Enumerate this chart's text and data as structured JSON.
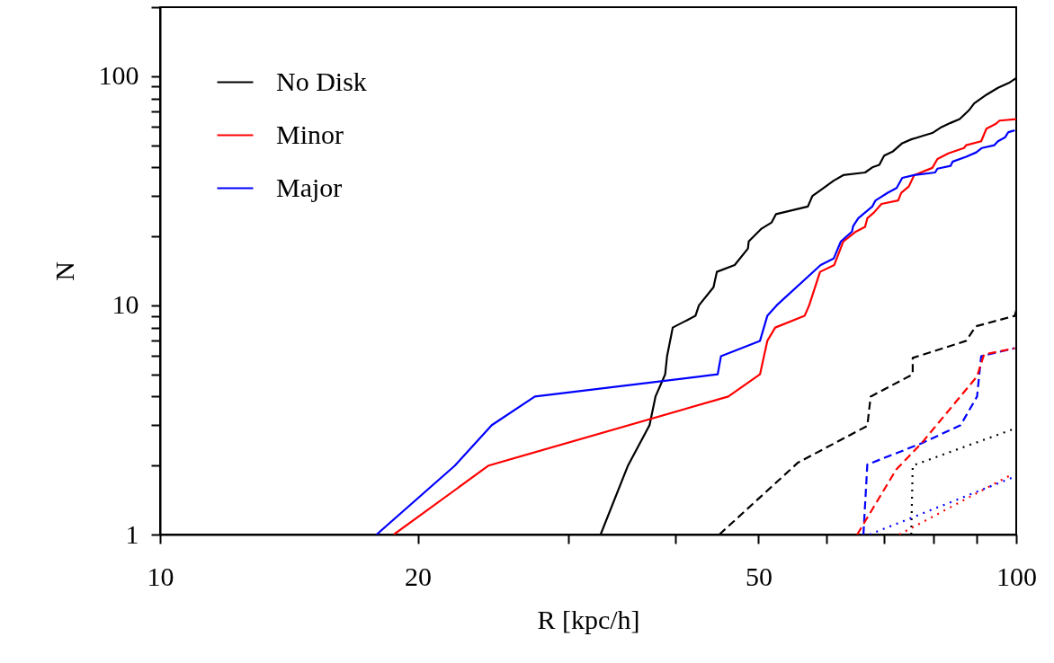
{
  "chart_data": {
    "type": "line",
    "xlabel": "R [kpc/h]",
    "ylabel": "N",
    "log": "xy",
    "xlim": [
      10,
      100
    ],
    "ylim": [
      1,
      200
    ],
    "xticks": [
      10,
      20,
      {
        "value": 30,
        "label": null
      },
      {
        "value": 40,
        "label": null
      },
      50,
      {
        "value": 60,
        "label": null
      },
      {
        "value": 70,
        "label": null
      },
      {
        "value": 80,
        "label": null
      },
      {
        "value": 90,
        "label": null
      },
      100
    ],
    "yticks": [
      1,
      {
        "value": 2,
        "label": null
      },
      {
        "value": 3,
        "label": null
      },
      {
        "value": 4,
        "label": null
      },
      {
        "value": 5,
        "label": null
      },
      {
        "value": 6,
        "label": null
      },
      {
        "value": 7,
        "label": null
      },
      {
        "value": 8,
        "label": null
      },
      {
        "value": 9,
        "label": null
      },
      10,
      {
        "value": 20,
        "label": null
      },
      {
        "value": 30,
        "label": null
      },
      {
        "value": 40,
        "label": null
      },
      {
        "value": 50,
        "label": null
      },
      {
        "value": 60,
        "label": null
      },
      {
        "value": 70,
        "label": null
      },
      {
        "value": 80,
        "label": null
      },
      {
        "value": 90,
        "label": null
      },
      100,
      {
        "value": 200,
        "label": null
      }
    ],
    "grid": false,
    "legend": "top left",
    "marker": "none",
    "series": [
      {
        "name": "No Disk",
        "color": "#000000",
        "line_style": "solid",
        "x": [
          32.7,
          35.2,
          37.3,
          37.9,
          38.9,
          39.1,
          39.7,
          42.2,
          42.6,
          44.3,
          44.7,
          46.9,
          48.6,
          48.7,
          50.4,
          51.8,
          52.4,
          57.1,
          57.8,
          59.0,
          61.2,
          62.8,
          66.6,
          67.9,
          69.2,
          70.1,
          71.8,
          73.6,
          75.4,
          77.9,
          79.8,
          81.8,
          83.8,
          85.9,
          88.0,
          89.3,
          92.3,
          95.2,
          98.3,
          100
        ],
        "values": [
          1,
          2,
          3,
          4,
          5,
          6,
          8,
          9,
          10,
          12,
          14,
          15,
          17.7,
          19,
          21.6,
          23,
          25,
          27,
          30,
          31.7,
          35,
          37,
          38,
          40,
          41,
          45,
          47,
          51,
          53,
          55,
          56.5,
          60,
          62.5,
          65,
          70.8,
          76,
          83,
          89,
          94,
          98
        ]
      },
      {
        "name": "Minor",
        "color": "#ff0000",
        "line_style": "solid",
        "x": [
          18.75,
          24.2,
          46.1,
          50.2,
          51.2,
          52.3,
          56.6,
          57.3,
          59.0,
          61.3,
          62.8,
          65.0,
          66.6,
          67.0,
          68.2,
          69.6,
          72.8,
          73.4,
          74.9,
          76.0,
          79.8,
          80.9,
          83.3,
          86.9,
          87.4,
          91.0,
          92.3,
          94.7,
          95.6,
          100
        ],
        "values": [
          1,
          2,
          4,
          5,
          7,
          8,
          9,
          10,
          14,
          15,
          19,
          21,
          22,
          24,
          25.4,
          27.7,
          28.7,
          31,
          33,
          37,
          39.8,
          43.5,
          46,
          48.6,
          50,
          52,
          59,
          62,
          64,
          64.9
        ]
      },
      {
        "name": "Major",
        "color": "#0000ff",
        "line_style": "solid",
        "x": [
          17.9,
          22.1,
          24.4,
          27.4,
          44.8,
          45.2,
          50.2,
          51.2,
          52.5,
          59.1,
          61.2,
          62.4,
          64.3,
          64.5,
          65.4,
          67.9,
          68.5,
          70.8,
          72.5,
          73.6,
          76.0,
          80.4,
          80.9,
          83.8,
          84.3,
          87.4,
          89.8,
          91.2,
          94.3,
          95.2,
          97.0,
          97.9,
          99.6
        ],
        "values": [
          1,
          2,
          3,
          4,
          5,
          6,
          7,
          9,
          10,
          15,
          16,
          19,
          21,
          22.2,
          24,
          27,
          28.7,
          31,
          32.5,
          36,
          37,
          38,
          39.5,
          40.6,
          42.4,
          44.5,
          46.5,
          48.6,
          50,
          52,
          54,
          57,
          58
        ]
      },
      {
        "color": "#000000",
        "line_style": "dashed",
        "x": [
          45.0,
          55.6,
          67.0,
          67.6,
          75.7,
          75.7,
          87.4,
          89.7,
          99.6,
          100
        ],
        "values": [
          1,
          2.06,
          2.98,
          4,
          5,
          5.9,
          7,
          8.1,
          9,
          9.5
        ]
      },
      {
        "color": "#0000ff",
        "line_style": "dashed",
        "x": [
          66.3,
          67.0,
          77.5,
          86.1,
          90.0,
          91.0,
          99.6
        ],
        "values": [
          1,
          2.02,
          2.5,
          3,
          4,
          6,
          6.5
        ]
      },
      {
        "color": "#ff0000",
        "line_style": "dashed",
        "x": [
          65.2,
          72.4,
          77.5,
          90.0,
          91.7,
          99.6
        ],
        "values": [
          1,
          1.92,
          2.5,
          4.9,
          6.1,
          6.5
        ]
      },
      {
        "color": "#000000",
        "line_style": "dotted",
        "x": [
          75.4,
          75.7,
          98.9,
          100
        ],
        "values": [
          1,
          2,
          2.87,
          2.9
        ]
      },
      {
        "color": "#ff0000",
        "line_style": "dotted",
        "x": [
          73.0,
          98.9
        ],
        "values": [
          1,
          1.83
        ]
      },
      {
        "color": "#0000ff",
        "line_style": "dotted",
        "x": [
          67.4,
          98.9
        ],
        "values": [
          1,
          1.77
        ]
      }
    ]
  }
}
